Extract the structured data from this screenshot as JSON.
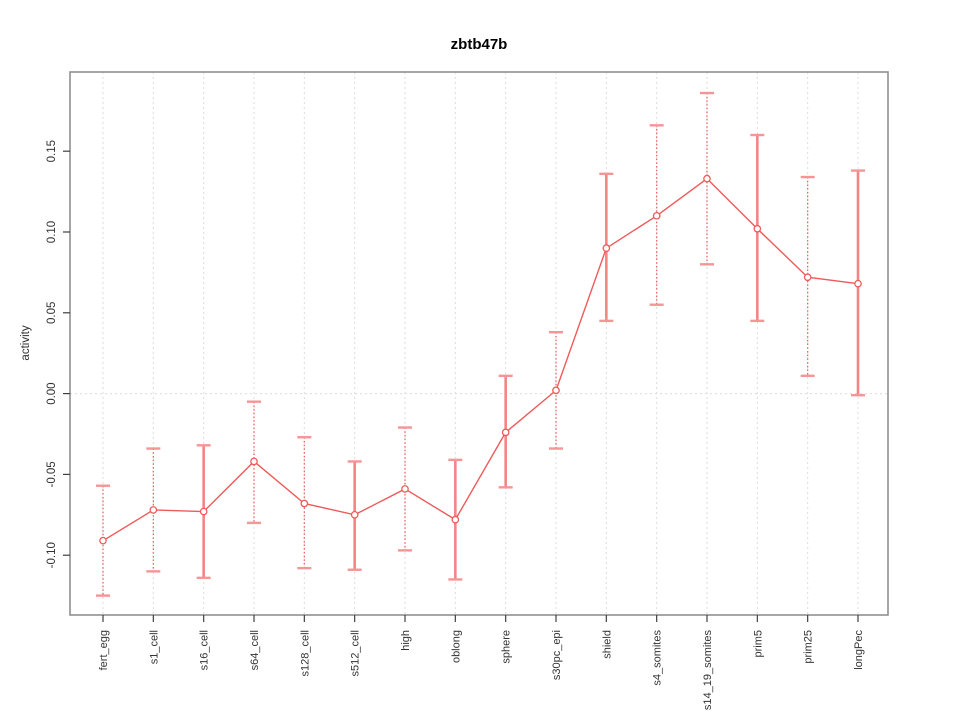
{
  "title": "zbtb47b",
  "chart_data": {
    "type": "line",
    "title": "zbtb47b",
    "xlabel": "",
    "ylabel": "activity",
    "legend_position": "none",
    "grid": {
      "vertical_dotted_at_each_category": true,
      "horizontal_dotted_at": [
        0
      ]
    },
    "ylim": [
      -0.137,
      0.199
    ],
    "yticks": [
      0.15,
      0.1,
      0.05,
      0.0,
      -0.05,
      -0.1
    ],
    "ytick_labels": [
      "0.15",
      "0.10",
      "0.05",
      "0.00",
      "-0.05",
      "-0.10"
    ],
    "categories": [
      "fert_egg",
      "s1_cell",
      "s16_cell",
      "s64_cell",
      "s128_cell",
      "s512_cell",
      "high",
      "oblong",
      "sphere",
      "s30pc_epi",
      "shield",
      "s4_somites",
      "s14_19_somites",
      "prim5",
      "prim25",
      "longPec"
    ],
    "series": [
      {
        "name": "activity",
        "values": [
          -0.091,
          -0.072,
          -0.073,
          -0.042,
          -0.068,
          -0.075,
          -0.059,
          -0.078,
          -0.024,
          0.002,
          0.09,
          0.11,
          0.133,
          0.102,
          0.072,
          0.068
        ],
        "error_low": [
          -0.125,
          -0.11,
          -0.114,
          -0.08,
          -0.108,
          -0.109,
          -0.097,
          -0.115,
          -0.058,
          -0.034,
          0.045,
          0.055,
          0.08,
          0.045,
          0.011,
          -0.001
        ],
        "error_high": [
          -0.057,
          -0.034,
          -0.032,
          -0.005,
          -0.027,
          -0.042,
          -0.021,
          -0.041,
          0.011,
          0.038,
          0.136,
          0.166,
          0.186,
          0.16,
          0.134,
          0.138
        ],
        "error_bar_styles": [
          "dotted",
          "dotted",
          "solid",
          "dotted",
          "dotted",
          "solid",
          "dotted",
          "solid",
          "solid",
          "dotted",
          "solid",
          "dotted",
          "dotted",
          "solid",
          "dotted",
          "solid"
        ]
      }
    ],
    "colors": {
      "line": "#ef5a5a",
      "marker_stroke": "#ef5a5a",
      "marker_fill": "#ffffff",
      "error_solid": "#f58484",
      "error_dotted": "#ea6464",
      "error_cap": "#f69595",
      "gridline": "#dcdcdc",
      "plot_border": "#8f8f8f",
      "tick_mark": "#3f3f3f",
      "tick_text": "#333333",
      "title_text": "#000000"
    }
  }
}
